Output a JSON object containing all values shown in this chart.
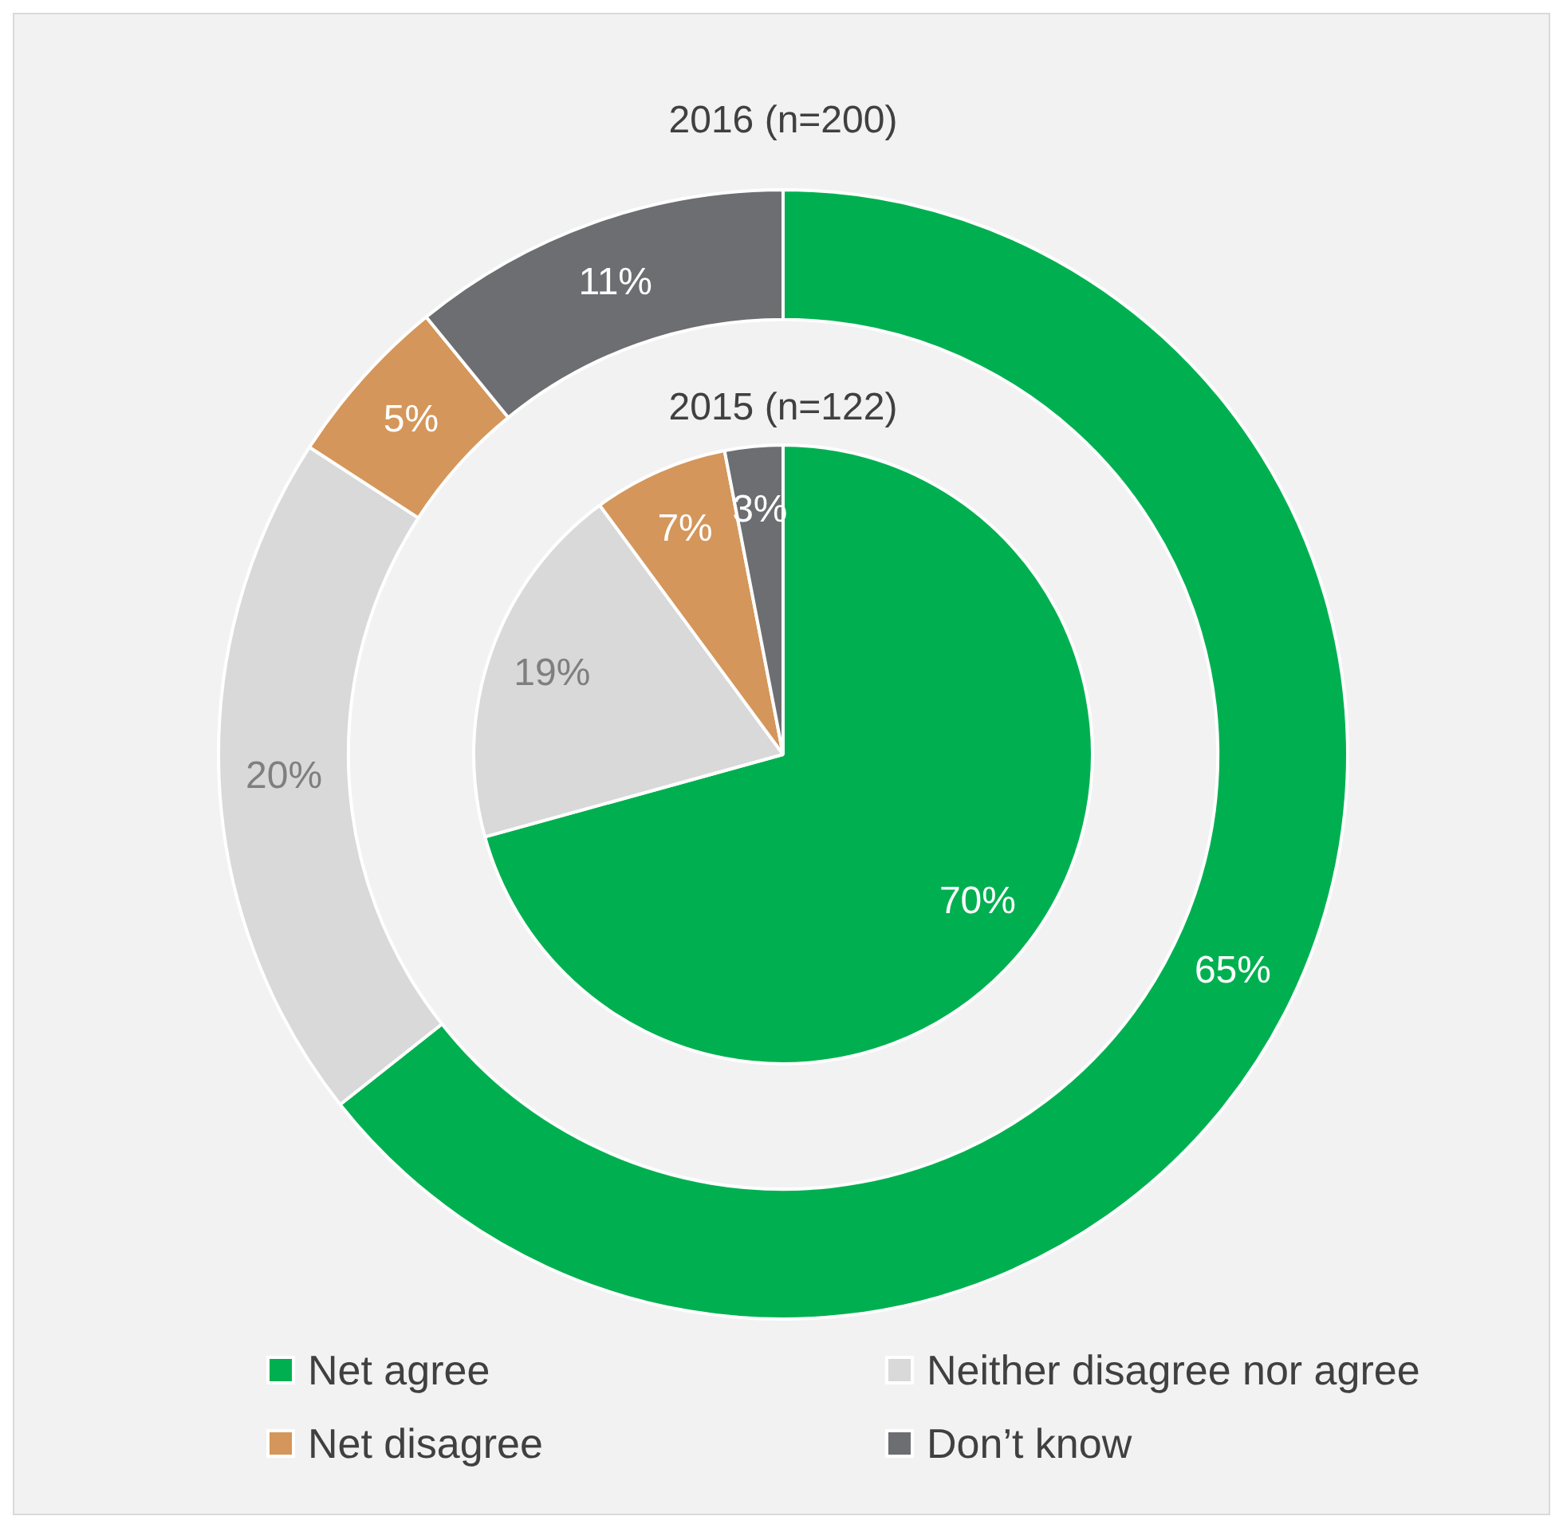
{
  "chart_data": {
    "type": "donut",
    "categories": [
      "Net agree",
      "Neither disagree nor agree",
      "Net disagree",
      "Don’t know"
    ],
    "colors": [
      "#00b050",
      "#d9d9d9",
      "#d4965a",
      "#6d6e71"
    ],
    "series": [
      {
        "name": "2016 (n=200)",
        "values": [
          65,
          20,
          5,
          11
        ],
        "value_labels": [
          "65%",
          "20%",
          "5%",
          "11%"
        ]
      },
      {
        "name": "2015 (n=122)",
        "type": "pie",
        "values": [
          70,
          19,
          7,
          3
        ],
        "value_labels": [
          "70%",
          "19%",
          "7%",
          "3%"
        ]
      }
    ],
    "legend": "bottom"
  }
}
